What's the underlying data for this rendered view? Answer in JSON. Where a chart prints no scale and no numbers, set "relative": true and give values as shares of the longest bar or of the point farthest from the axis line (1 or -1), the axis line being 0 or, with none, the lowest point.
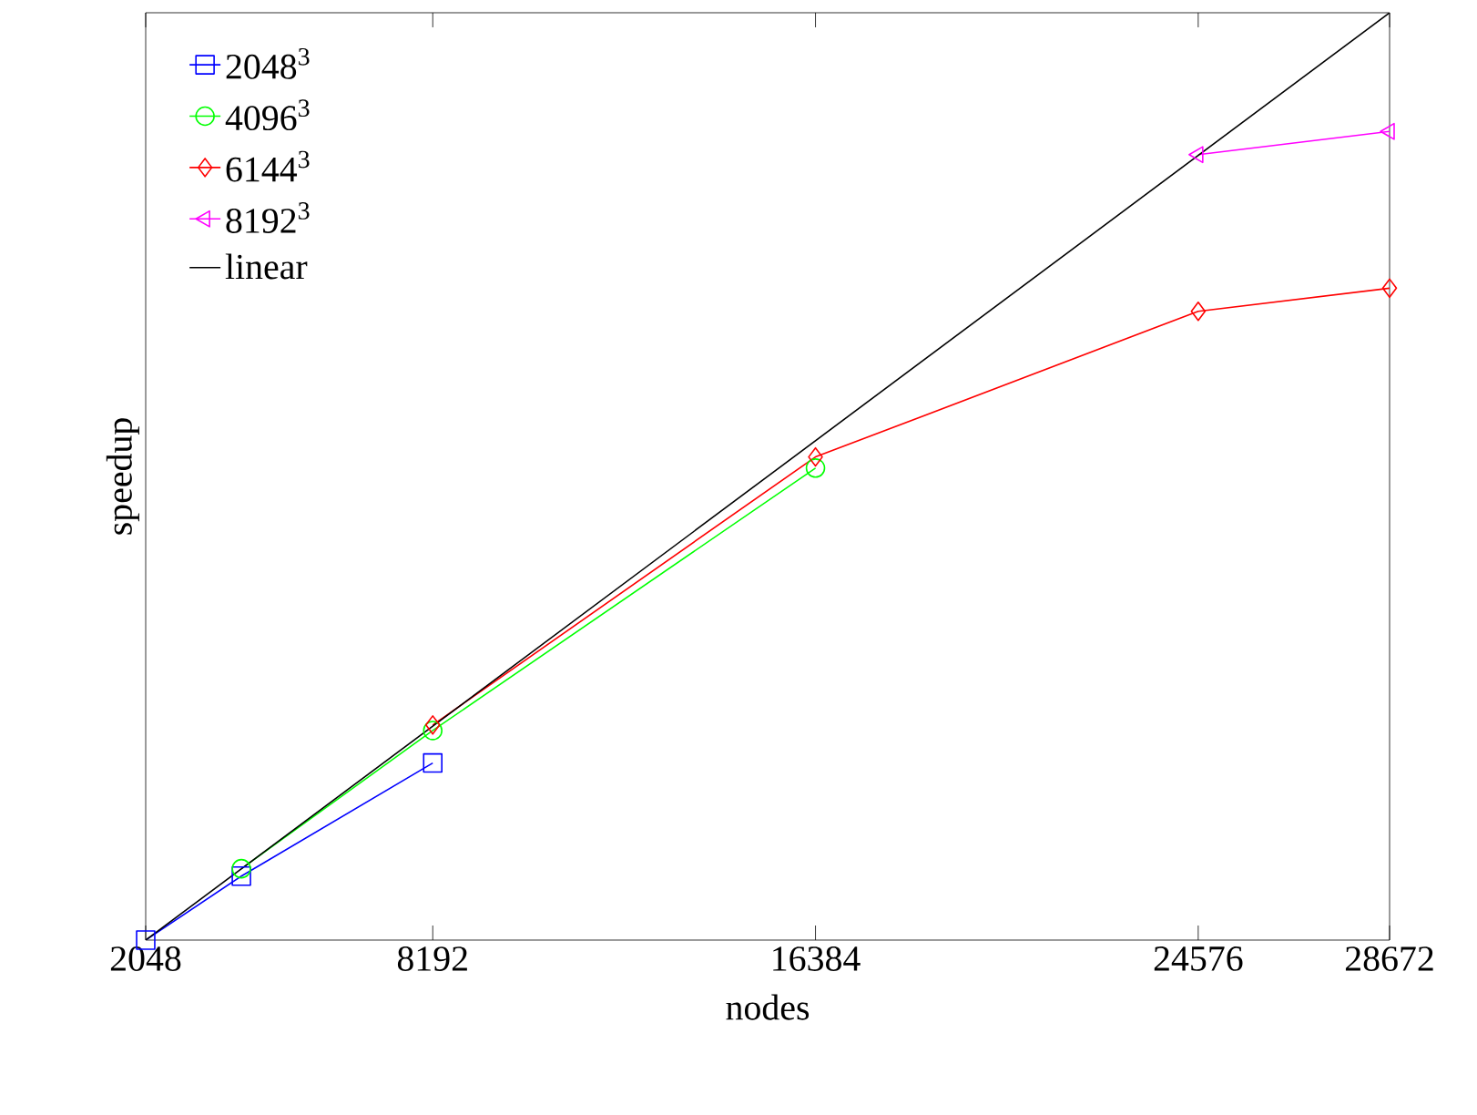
{
  "chart_data": {
    "type": "line",
    "relative": true,
    "xlabel": "nodes",
    "ylabel": "speedup",
    "xlim": [
      2048,
      28672
    ],
    "xticks": [
      2048,
      8192,
      16384,
      24576,
      28672
    ],
    "legend": "top left",
    "line_style": "solid",
    "series": [
      {
        "name": "2048$^{3}$",
        "color": "#0000ff",
        "marker": "square",
        "x": [
          2048,
          4096,
          8192
        ],
        "values": [
          0,
          0.069,
          0.191
        ]
      },
      {
        "name": "4096$^{3}$",
        "color": "#00ff00",
        "marker": "circle",
        "x": [
          4096,
          8192,
          16384
        ],
        "values": [
          0.077,
          0.226,
          0.509
        ]
      },
      {
        "name": "6144$^{3}$",
        "color": "#ff0000",
        "marker": "diamond",
        "x": [
          8192,
          16384,
          24576,
          28672
        ],
        "values": [
          0.232,
          0.521,
          0.678,
          0.703
        ]
      },
      {
        "name": "8192$^{3}$",
        "color": "#ff00ff",
        "marker": "triangle",
        "x": [
          24576,
          28672
        ],
        "values": [
          0.847,
          0.872
        ]
      },
      {
        "name": "linear",
        "color": "#000000",
        "marker": "none",
        "x": [
          2048,
          28672
        ],
        "values": [
          0,
          1
        ]
      }
    ]
  }
}
